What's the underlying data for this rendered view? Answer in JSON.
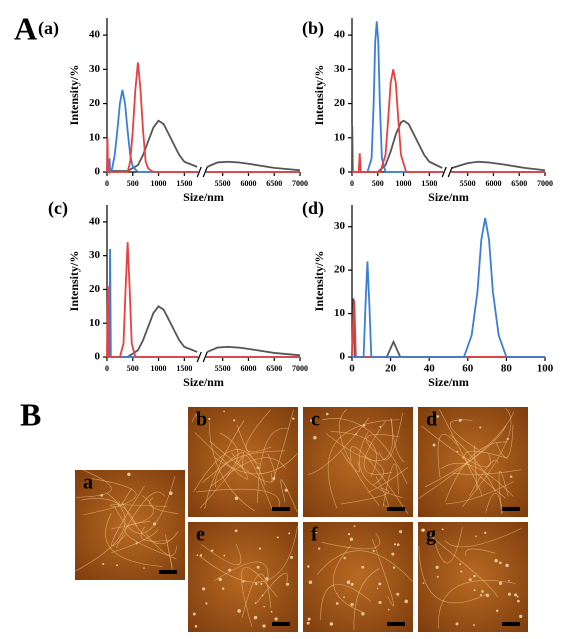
{
  "figure_labels": [
    "A",
    "B"
  ],
  "chart_data": [
    {
      "type": "line",
      "title": "(a)",
      "x_label": "Size/nm",
      "y_label": "Intensity/%",
      "xlim": [
        0,
        7000
      ],
      "x_break": [
        1750,
        5200
      ],
      "xticks": [
        0,
        500,
        1000,
        1500,
        5500,
        6000,
        6500,
        7000
      ],
      "ylim": [
        0,
        45
      ],
      "yticks": [
        0,
        10,
        20,
        30,
        40
      ],
      "series": [
        {
          "color": "#555555",
          "x": [
            0,
            20,
            30,
            400,
            600,
            700,
            800,
            900,
            1000,
            1100,
            1200,
            1300,
            1400,
            1500,
            1750,
            5200,
            5400,
            5600,
            5800,
            6000,
            6500,
            7000
          ],
          "values": [
            1,
            3,
            0.3,
            0.3,
            2,
            5,
            9,
            13,
            15,
            14,
            11,
            8,
            5,
            3,
            1.5,
            1.5,
            2.8,
            3,
            2.8,
            2.4,
            1.2,
            0.5
          ]
        },
        {
          "color": "#3a7fd5",
          "x": [
            0,
            40,
            50,
            60,
            100,
            150,
            200,
            250,
            300,
            350,
            400,
            450,
            500,
            600,
            800,
            1750,
            5200,
            7000
          ],
          "values": [
            0,
            0,
            4,
            0,
            1,
            5,
            12,
            20,
            24,
            20,
            12,
            5,
            1.5,
            0,
            0,
            0,
            0,
            0
          ]
        },
        {
          "color": "#e8403f",
          "x": [
            0,
            10,
            20,
            300,
            400,
            450,
            500,
            550,
            600,
            650,
            700,
            750,
            800,
            900,
            1750,
            5200,
            7000
          ],
          "values": [
            0,
            10,
            0,
            0,
            0,
            3,
            12,
            24,
            32,
            24,
            12,
            3,
            1,
            0,
            0,
            0,
            0
          ]
        }
      ]
    },
    {
      "type": "line",
      "title": "(b)",
      "x_label": "Size/nm",
      "y_label": "Intensity/%",
      "xlim": [
        0,
        7000
      ],
      "x_break": [
        1750,
        5200
      ],
      "xticks": [
        0,
        500,
        1000,
        1500,
        5500,
        6000,
        6500,
        7000
      ],
      "ylim": [
        0,
        45
      ],
      "yticks": [
        0,
        10,
        20,
        30,
        40
      ],
      "series": [
        {
          "color": "#555555",
          "x": [
            0,
            5,
            15,
            500,
            650,
            750,
            850,
            950,
            1000,
            1100,
            1200,
            1300,
            1400,
            1500,
            1750,
            5200,
            5500,
            5700,
            5900,
            6200,
            6600,
            7000
          ],
          "values": [
            0,
            13.5,
            0,
            0,
            2,
            6,
            11,
            14.5,
            15,
            14,
            11,
            8,
            5,
            3,
            1.2,
            1.2,
            2.6,
            3,
            2.8,
            2.2,
            1.2,
            0.5
          ]
        },
        {
          "color": "#3a7fd5",
          "x": [
            0,
            300,
            380,
            420,
            450,
            480,
            510,
            540,
            580,
            650,
            1750,
            5200,
            7000
          ],
          "values": [
            0,
            0,
            4,
            20,
            38,
            44,
            38,
            20,
            4,
            0,
            0,
            0,
            0
          ]
        },
        {
          "color": "#e8403f",
          "x": [
            0,
            130,
            150,
            170,
            550,
            650,
            700,
            750,
            800,
            850,
            900,
            950,
            1050,
            1750,
            5200,
            7000
          ],
          "values": [
            0,
            0,
            5.5,
            0,
            0,
            5,
            15,
            26,
            30,
            26,
            15,
            5,
            0,
            0,
            0,
            0
          ]
        }
      ]
    },
    {
      "type": "line",
      "title": "(c)",
      "x_label": "Size/nm",
      "y_label": "Intensity/%",
      "xlim": [
        0,
        7000
      ],
      "x_break": [
        1750,
        5200
      ],
      "xticks": [
        0,
        500,
        1000,
        1500,
        5500,
        6000,
        6500,
        7000
      ],
      "ylim": [
        0,
        45
      ],
      "yticks": [
        0,
        10,
        20,
        30,
        40
      ],
      "series": [
        {
          "color": "#555555",
          "x": [
            0,
            400,
            600,
            700,
            800,
            900,
            1000,
            1100,
            1200,
            1300,
            1400,
            1500,
            1750,
            5200,
            5400,
            5600,
            5800,
            6000,
            6500,
            7000
          ],
          "values": [
            0,
            0,
            2,
            5,
            9,
            13,
            15,
            14,
            11,
            8,
            5,
            3,
            1.5,
            1.5,
            2.8,
            3,
            2.8,
            2.4,
            1.2,
            0.5
          ]
        },
        {
          "color": "#3a7fd5",
          "x": [
            0,
            45,
            60,
            75,
            1750,
            5200,
            7000
          ],
          "values": [
            0,
            0,
            32,
            0,
            0,
            0,
            0
          ]
        },
        {
          "color": "#e8403f",
          "x": [
            0,
            20,
            30,
            250,
            320,
            360,
            400,
            440,
            480,
            550,
            1750,
            5200,
            7000
          ],
          "values": [
            0,
            21,
            0,
            0,
            4,
            20,
            34,
            20,
            4,
            0,
            0,
            0,
            0
          ]
        }
      ]
    },
    {
      "type": "line",
      "title": "(d)",
      "x_label": "Size/nm",
      "y_label": "Intensity/%",
      "xlim": [
        0,
        100
      ],
      "xticks": [
        0,
        20,
        40,
        60,
        80,
        100
      ],
      "ylim": [
        0,
        35
      ],
      "yticks": [
        0,
        10,
        20,
        30
      ],
      "series": [
        {
          "color": "#555555",
          "x": [
            0,
            0.8,
            1.5,
            18,
            20,
            21.5,
            23,
            25,
            100
          ],
          "values": [
            0,
            13.5,
            0,
            0,
            2,
            3.5,
            2,
            0,
            0
          ]
        },
        {
          "color": "#e8403f",
          "x": [
            0,
            1.2,
            2,
            100
          ],
          "values": [
            0,
            13,
            0,
            0
          ]
        },
        {
          "color": "#3a7fd5",
          "x": [
            0,
            6,
            7,
            8,
            9,
            10,
            58,
            62,
            65,
            67,
            69,
            71,
            73,
            76,
            80,
            100
          ],
          "values": [
            0,
            0,
            12,
            22,
            12,
            0,
            0,
            5,
            15,
            27,
            32,
            27,
            15,
            5,
            0,
            0
          ]
        }
      ]
    }
  ],
  "afm_images": {
    "labels": [
      "a",
      "b",
      "c",
      "d",
      "e",
      "f",
      "g"
    ]
  }
}
